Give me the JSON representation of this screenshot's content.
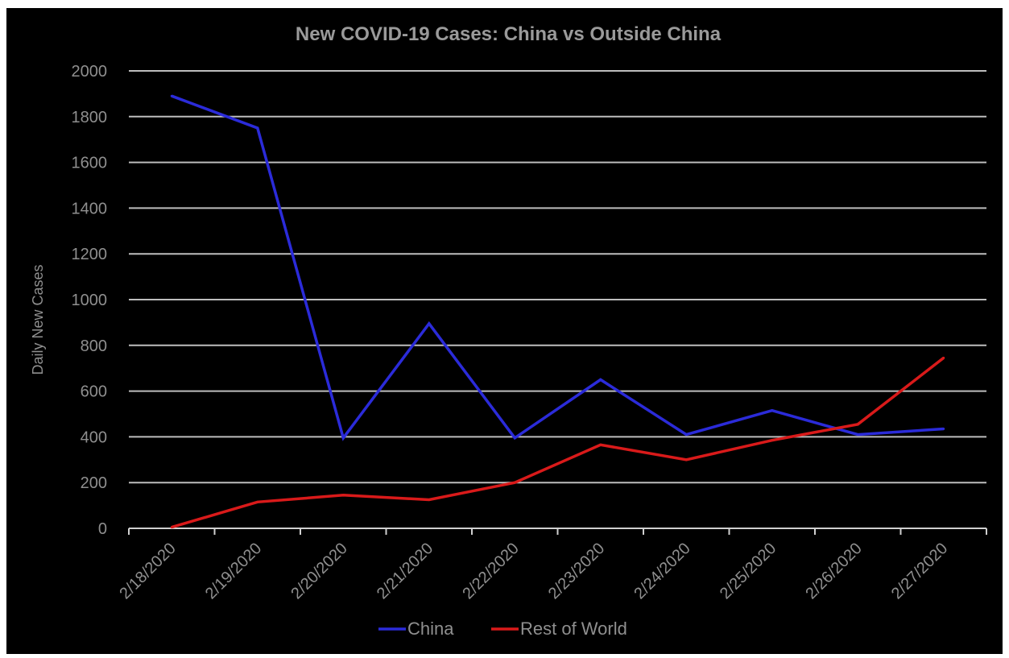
{
  "chart_data": {
    "type": "line",
    "title": "New COVID-19 Cases: China vs Outside China",
    "xlabel": "",
    "ylabel": "Daily New Cases",
    "categories": [
      "2/18/2020",
      "2/19/2020",
      "2/20/2020",
      "2/21/2020",
      "2/22/2020",
      "2/23/2020",
      "2/24/2020",
      "2/25/2020",
      "2/26/2020",
      "2/27/2020"
    ],
    "ylim": [
      0,
      2000
    ],
    "yticks": [
      0,
      200,
      400,
      600,
      800,
      1000,
      1200,
      1400,
      1600,
      1800,
      2000
    ],
    "grid": true,
    "legend_position": "bottom",
    "series": [
      {
        "name": "China",
        "color": "#2b2bd9",
        "values": [
          1890,
          1750,
          395,
          895,
          395,
          650,
          410,
          515,
          410,
          435
        ]
      },
      {
        "name": "Rest of World",
        "color": "#d91a1a",
        "values": [
          5,
          115,
          145,
          125,
          200,
          365,
          300,
          385,
          455,
          745
        ]
      }
    ]
  }
}
